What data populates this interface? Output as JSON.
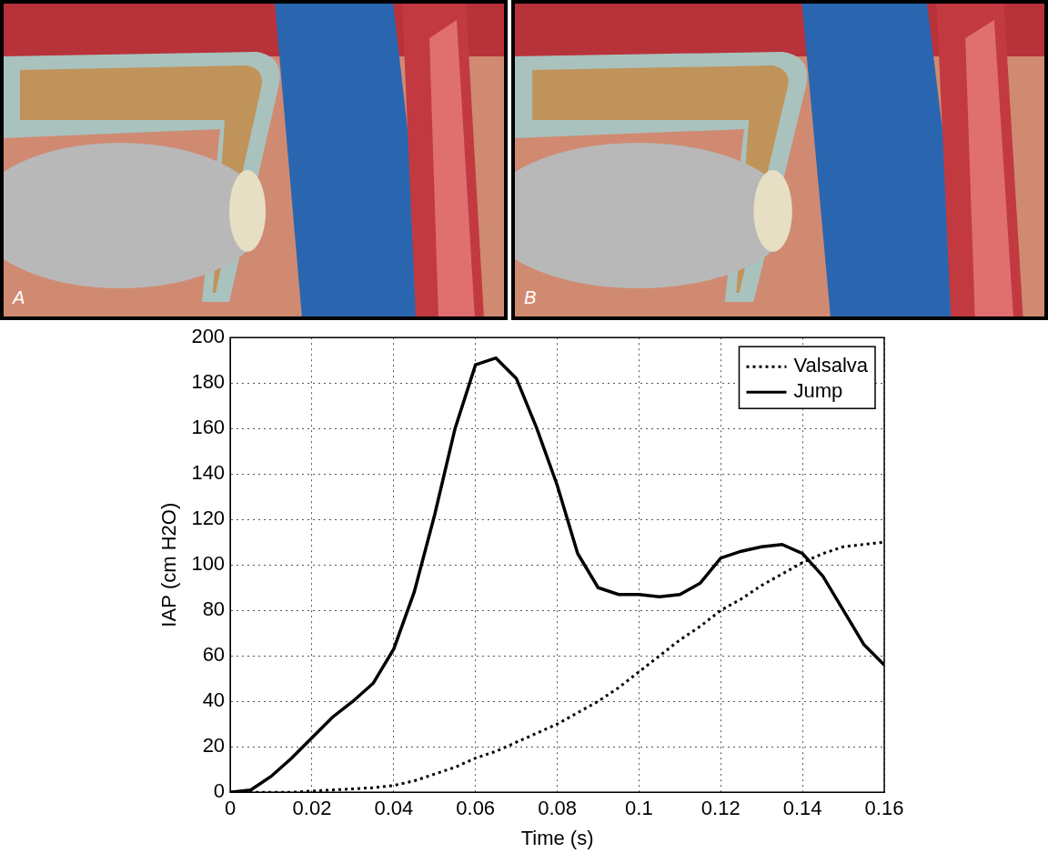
{
  "panels": [
    {
      "label": "A"
    },
    {
      "label": "B"
    }
  ],
  "chart_data": {
    "type": "line",
    "x": [
      0,
      0.005,
      0.01,
      0.015,
      0.02,
      0.025,
      0.03,
      0.035,
      0.04,
      0.045,
      0.05,
      0.055,
      0.06,
      0.065,
      0.07,
      0.075,
      0.08,
      0.085,
      0.09,
      0.095,
      0.1,
      0.105,
      0.11,
      0.115,
      0.12,
      0.125,
      0.13,
      0.135,
      0.14,
      0.145,
      0.15,
      0.155,
      0.16
    ],
    "series": [
      {
        "name": "Valsalva",
        "color": "#000000",
        "line_style": "dotted",
        "values": [
          0,
          0,
          0,
          0,
          0.5,
          1,
          1.5,
          2,
          3,
          5,
          8,
          11,
          15,
          18,
          22,
          26,
          30,
          35,
          40,
          46,
          53,
          60,
          67,
          73,
          80,
          85,
          91,
          96,
          101,
          105,
          108,
          109,
          110
        ]
      },
      {
        "name": "Jump",
        "color": "#000000",
        "line_style": "solid",
        "values": [
          0,
          1,
          7,
          15,
          24,
          33,
          40,
          48,
          63,
          88,
          122,
          160,
          188,
          191,
          182,
          160,
          135,
          105,
          90,
          87,
          87,
          86,
          87,
          92,
          103,
          106,
          108,
          109,
          105,
          95,
          80,
          65,
          56
        ]
      }
    ],
    "x_label": "Time (s)",
    "y_label": "IAP (cm H2O)",
    "xlim": [
      0,
      0.16
    ],
    "xticks": [
      0,
      0.02,
      0.04,
      0.06,
      0.08,
      0.1,
      0.12,
      0.14,
      0.16
    ],
    "ylim": [
      0,
      200
    ],
    "yticks": [
      0,
      20,
      40,
      60,
      80,
      100,
      120,
      140,
      160,
      180,
      200
    ],
    "grid": true,
    "legend": "upper right"
  }
}
